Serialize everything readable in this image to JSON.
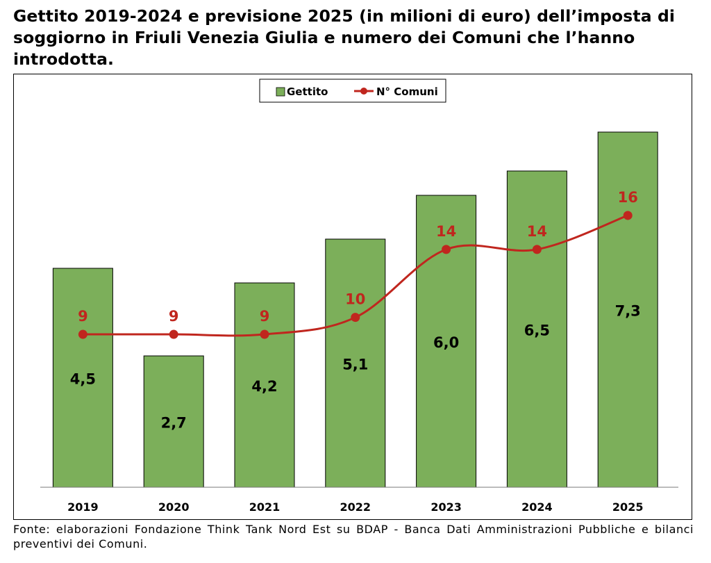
{
  "title": "Gettito 2019-2024 e previsione 2025 (in milioni di euro) dell’imposta di soggiorno in Friuli Venezia Giulia e numero dei Comuni che l’hanno introdotta.",
  "source": "Fonte: elaborazioni Fondazione Think Tank Nord Est su BDAP - Banca Dati Amministrazioni Pubbliche e bilanci preventivi dei Comuni.",
  "colors": {
    "bar": "#7caf5a",
    "line": "#c0261e",
    "text": "#000000"
  },
  "chart_data": {
    "type": "bar",
    "categories": [
      "2019",
      "2020",
      "2021",
      "2022",
      "2023",
      "2024",
      "2025"
    ],
    "series": [
      {
        "name": "Gettito",
        "type": "bar",
        "values": [
          4.5,
          2.7,
          4.2,
          5.1,
          6.0,
          6.5,
          7.3
        ],
        "labels": [
          "4,5",
          "2,7",
          "4,2",
          "5,1",
          "6,0",
          "6,5",
          "7,3"
        ]
      },
      {
        "name": "N° Comuni",
        "type": "line",
        "axis": "secondary",
        "smooth": true,
        "values": [
          9,
          9,
          9,
          10,
          14,
          14,
          16
        ],
        "labels": [
          "9",
          "9",
          "9",
          "10",
          "14",
          "14",
          "16"
        ]
      }
    ],
    "ylim": [
      0,
      8.1
    ],
    "y2lim": [
      0,
      23.2
    ],
    "grid": false,
    "legend": "top-center"
  }
}
